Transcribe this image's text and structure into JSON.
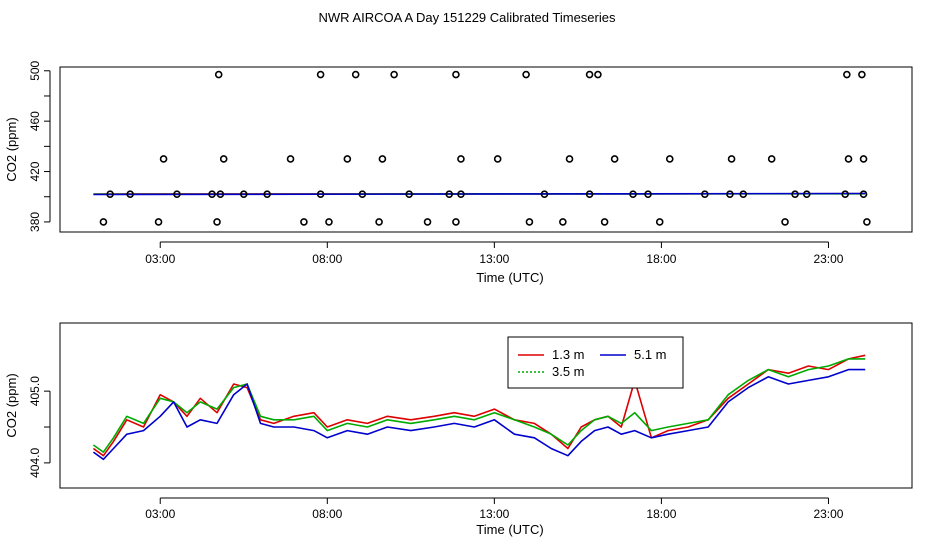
{
  "page_title": "NWR AIRCOA A  Day 151229  Calibrated Timeseries",
  "chart_data": [
    {
      "type": "scatter",
      "id": "top",
      "xlabel": "Time (UTC)",
      "ylabel": "CO2 (ppm)",
      "xlim": [
        0,
        25.5
      ],
      "ylim": [
        372,
        503
      ],
      "xticks": [
        3,
        8,
        13,
        18,
        23
      ],
      "xtick_labels": [
        "03:00",
        "08:00",
        "13:00",
        "18:00",
        "23:00"
      ],
      "yticks": [
        380,
        420,
        460,
        500
      ],
      "ytick_labels": [
        "380",
        "420",
        "460",
        "500"
      ],
      "yminor": [
        400,
        440,
        480
      ],
      "points": {
        "x": [
          1.3,
          2.95,
          4.7,
          7.3,
          8.05,
          9.55,
          11.0,
          11.85,
          14.05,
          15.05,
          16.3,
          17.95,
          21.7,
          24.15,
          2.1,
          4.8,
          5.5,
          7.8,
          10.45,
          12.0,
          15.85,
          17.6,
          20.45,
          22.35,
          24.05,
          1.5,
          3.5,
          4.55,
          6.2,
          9.05,
          11.65,
          14.5,
          17.15,
          19.3,
          20.05,
          22.0,
          23.5,
          3.1,
          4.9,
          6.9,
          8.6,
          9.65,
          12.0,
          13.1,
          15.25,
          16.6,
          18.25,
          20.1,
          21.3,
          23.6,
          24.05,
          4.75,
          7.8,
          11.85,
          16.1,
          23.55,
          24.0,
          8.85,
          10.0,
          13.95,
          15.85
        ],
        "y": [
          380,
          380,
          380,
          380,
          380,
          380,
          380,
          380,
          380,
          380,
          380,
          380,
          380,
          380,
          402,
          402,
          402,
          402,
          402,
          402,
          402,
          402,
          402,
          402,
          402,
          402,
          402,
          402,
          402,
          402,
          402,
          402,
          402,
          402,
          402,
          402,
          402,
          430,
          430,
          430,
          430,
          430,
          430,
          430,
          430,
          430,
          430,
          430,
          430,
          430,
          430,
          497,
          497,
          497,
          497,
          497,
          497,
          497,
          497,
          497,
          497
        ]
      },
      "series": [
        {
          "name": "1.3 m",
          "color": "#dd0000",
          "x": [
            1.0,
            24.1
          ],
          "y": [
            402.2,
            402.4
          ]
        },
        {
          "name": "3.5 m",
          "color": "#00aa00",
          "x": [
            1.0,
            24.1
          ],
          "y": [
            402.0,
            402.3
          ]
        },
        {
          "name": "5.1 m",
          "color": "#0000cc",
          "x": [
            1.0,
            24.1
          ],
          "y": [
            401.8,
            402.6
          ]
        }
      ]
    },
    {
      "type": "line",
      "id": "bottom",
      "xlabel": "Time (UTC)",
      "ylabel": "CO2 (ppm)",
      "xlim": [
        0,
        25.5
      ],
      "ylim": [
        403.65,
        405.95
      ],
      "xticks": [
        3,
        8,
        13,
        18,
        23
      ],
      "xtick_labels": [
        "03:00",
        "08:00",
        "13:00",
        "18:00",
        "23:00"
      ],
      "yticks": [
        404.0,
        405.0
      ],
      "ytick_labels": [
        "404.0",
        "405.0"
      ],
      "yminor": [
        404.5
      ],
      "legend": {
        "position": "top-center",
        "entries": [
          "1.3 m",
          "3.5 m",
          "5.1 m"
        ]
      },
      "series": [
        {
          "name": "1.3 m",
          "color": "#dd0000",
          "x": [
            1.0,
            1.3,
            1.6,
            2.0,
            2.5,
            3.0,
            3.4,
            3.8,
            4.2,
            4.7,
            5.2,
            5.6,
            6.0,
            6.4,
            7.0,
            7.6,
            8.0,
            8.6,
            9.2,
            9.8,
            10.5,
            11.2,
            11.8,
            12.4,
            13.0,
            13.6,
            14.2,
            14.7,
            15.2,
            15.6,
            16.0,
            16.4,
            16.8,
            17.2,
            17.7,
            18.2,
            18.8,
            19.4,
            20.0,
            20.6,
            21.2,
            21.8,
            22.4,
            23.0,
            23.6,
            24.1
          ],
          "y": [
            404.2,
            404.1,
            404.3,
            404.6,
            404.5,
            404.95,
            404.85,
            404.65,
            404.9,
            404.7,
            405.1,
            405.05,
            404.6,
            404.55,
            404.65,
            404.7,
            404.5,
            404.6,
            404.55,
            404.65,
            404.6,
            404.65,
            404.7,
            404.65,
            404.75,
            404.6,
            404.55,
            404.4,
            404.2,
            404.5,
            404.6,
            404.65,
            404.5,
            405.15,
            404.35,
            404.45,
            404.5,
            404.6,
            404.9,
            405.1,
            405.3,
            405.25,
            405.35,
            405.3,
            405.45,
            405.5
          ]
        },
        {
          "name": "3.5 m",
          "color": "#00aa00",
          "x": [
            1.0,
            1.3,
            1.6,
            2.0,
            2.5,
            3.0,
            3.4,
            3.8,
            4.2,
            4.7,
            5.2,
            5.6,
            6.0,
            6.4,
            7.0,
            7.6,
            8.0,
            8.6,
            9.2,
            9.8,
            10.5,
            11.2,
            11.8,
            12.4,
            13.0,
            13.6,
            14.2,
            14.7,
            15.2,
            15.6,
            16.0,
            16.4,
            16.8,
            17.2,
            17.7,
            18.2,
            18.8,
            19.4,
            20.0,
            20.6,
            21.2,
            21.8,
            22.4,
            23.0,
            23.6,
            24.1
          ],
          "y": [
            404.25,
            404.15,
            404.35,
            404.65,
            404.55,
            404.9,
            404.85,
            404.7,
            404.85,
            404.75,
            405.05,
            405.1,
            404.65,
            404.6,
            404.6,
            404.65,
            404.45,
            404.55,
            404.5,
            404.6,
            404.55,
            404.6,
            404.65,
            404.6,
            404.7,
            404.6,
            404.5,
            404.4,
            404.25,
            404.45,
            404.6,
            404.65,
            404.55,
            404.7,
            404.45,
            404.5,
            404.55,
            404.6,
            404.95,
            405.15,
            405.3,
            405.2,
            405.3,
            405.35,
            405.45,
            405.45
          ]
        },
        {
          "name": "5.1 m",
          "color": "#0000cc",
          "x": [
            1.0,
            1.3,
            1.6,
            2.0,
            2.5,
            3.0,
            3.4,
            3.8,
            4.2,
            4.7,
            5.2,
            5.6,
            6.0,
            6.4,
            7.0,
            7.6,
            8.0,
            8.6,
            9.2,
            9.8,
            10.5,
            11.2,
            11.8,
            12.4,
            13.0,
            13.6,
            14.2,
            14.7,
            15.2,
            15.6,
            16.0,
            16.4,
            16.8,
            17.2,
            17.7,
            18.2,
            18.8,
            19.4,
            20.0,
            20.6,
            21.2,
            21.8,
            22.4,
            23.0,
            23.6,
            24.1
          ],
          "y": [
            404.15,
            404.05,
            404.2,
            404.4,
            404.45,
            404.65,
            404.85,
            404.5,
            404.6,
            404.55,
            404.95,
            405.1,
            404.55,
            404.5,
            404.5,
            404.45,
            404.35,
            404.45,
            404.4,
            404.5,
            404.45,
            404.5,
            404.55,
            404.5,
            404.6,
            404.4,
            404.35,
            404.2,
            404.1,
            404.3,
            404.45,
            404.5,
            404.4,
            404.45,
            404.35,
            404.4,
            404.45,
            404.5,
            404.85,
            405.05,
            405.2,
            405.1,
            405.15,
            405.2,
            405.3,
            405.3
          ]
        }
      ]
    }
  ]
}
